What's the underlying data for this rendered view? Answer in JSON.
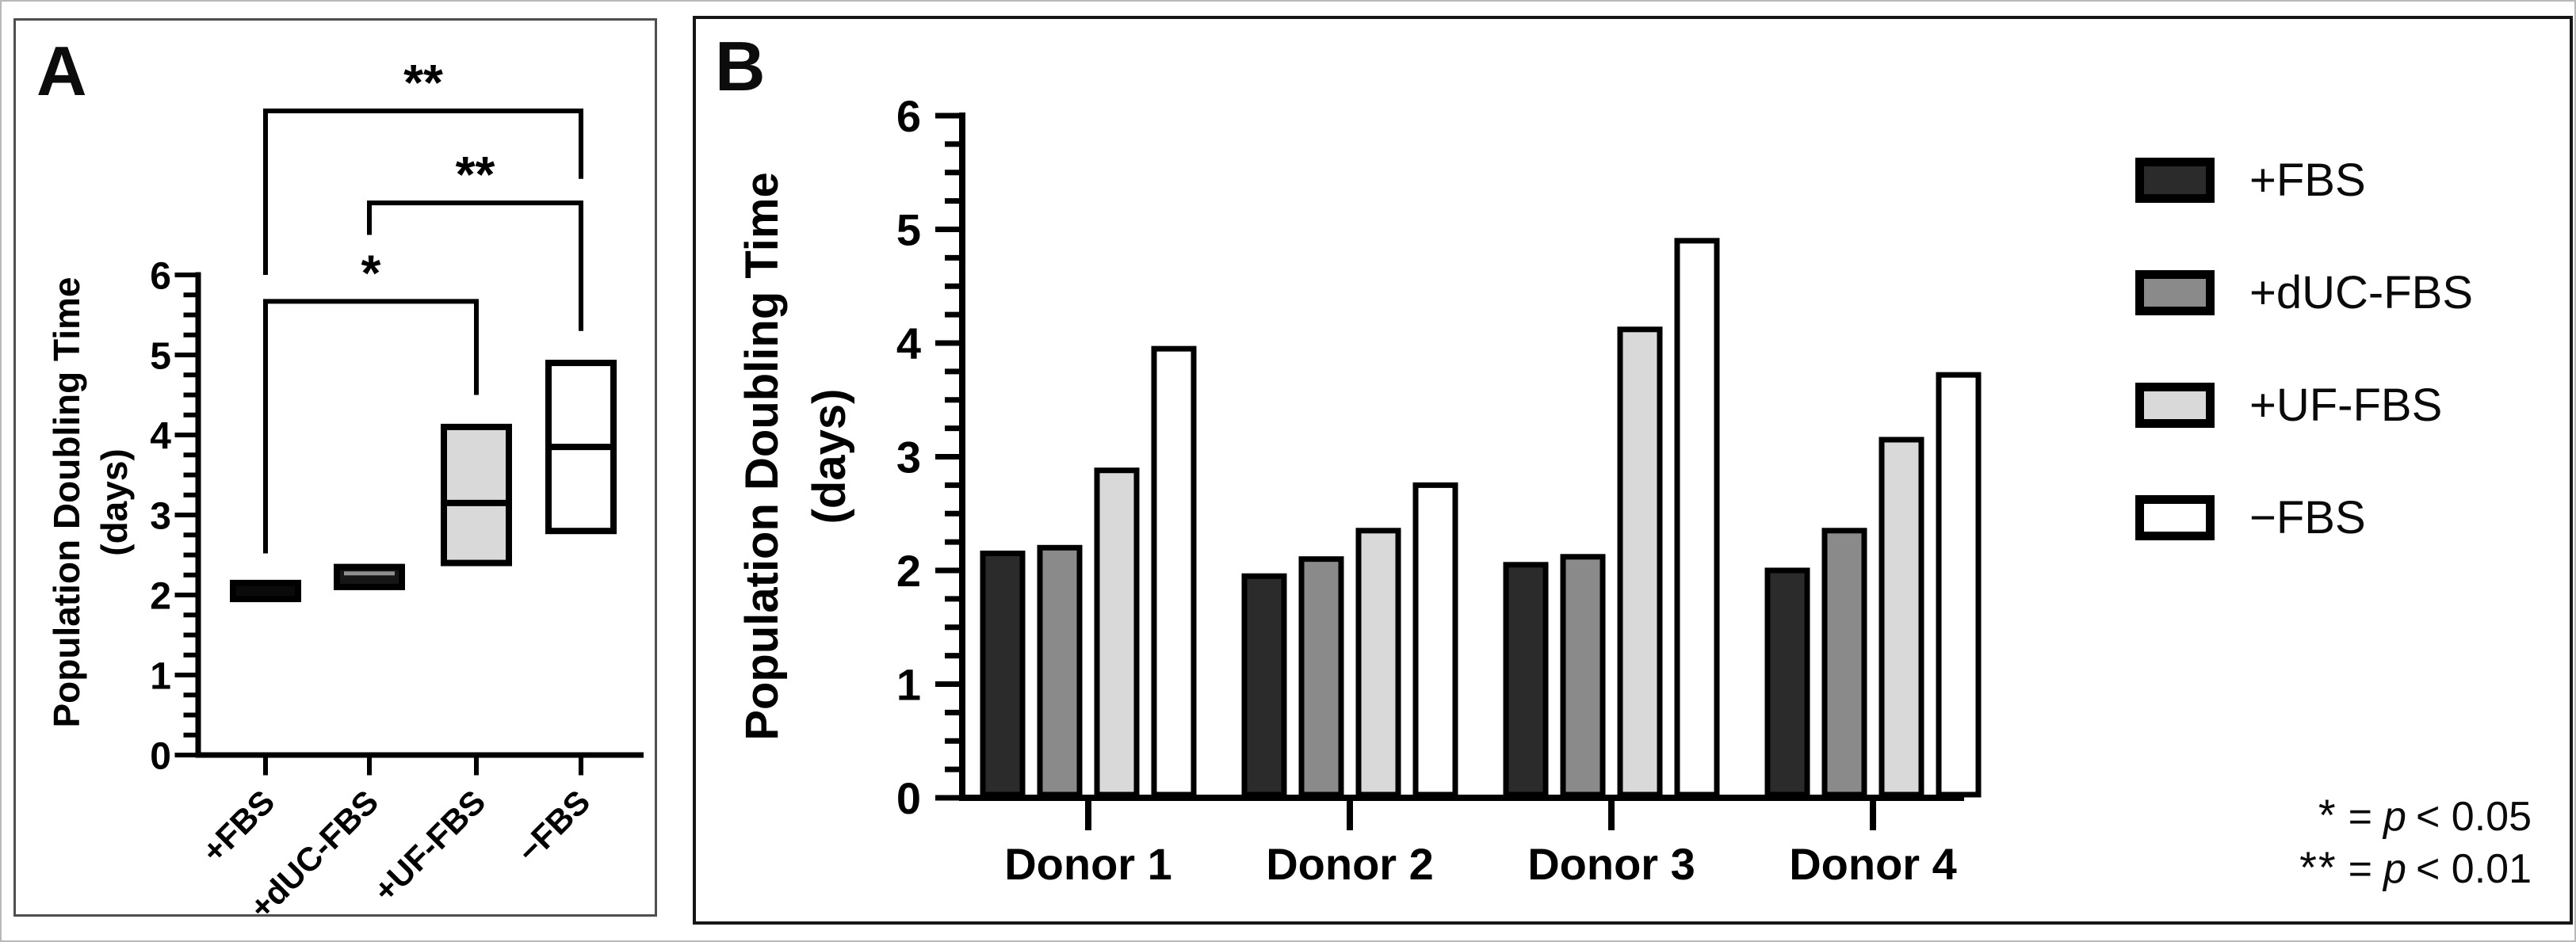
{
  "figure": {
    "panels": [
      {
        "label": "A"
      },
      {
        "label": "B"
      }
    ]
  },
  "chart_data": [
    {
      "id": "A",
      "type": "box",
      "title": "",
      "ylabel": "Population Doubling Time (days)",
      "ylabel_lines": [
        "Population Doubling Time",
        "(days)"
      ],
      "ylim": [
        0,
        6
      ],
      "ytick_major": 1,
      "ytick_minor": 0.25,
      "grid": false,
      "categories": [
        "+FBS",
        "+dUC-FBS",
        "+UF-FBS",
        "−FBS"
      ],
      "boxes": [
        {
          "category": "+FBS",
          "min": 1.95,
          "max": 2.15,
          "median": null,
          "fill": "#0a0a0a",
          "median_color": null
        },
        {
          "category": "+dUC-FBS",
          "min": 2.1,
          "max": 2.35,
          "median": 2.27,
          "fill": "#161616",
          "median_color": "#8f8f8f"
        },
        {
          "category": "+UF-FBS",
          "min": 2.4,
          "max": 4.1,
          "median": 3.15,
          "fill": "#d9d9d9",
          "median_color": "#000000"
        },
        {
          "category": "−FBS",
          "min": 2.8,
          "max": 4.9,
          "median": 3.85,
          "fill": "#ffffff",
          "median_color": "#000000"
        }
      ],
      "significance_brackets": [
        {
          "from": "+FBS",
          "to": "+UF-FBS",
          "label": "*",
          "bar_y": 5.67,
          "left_leg_to": 2.52,
          "right_leg_to": 4.5
        },
        {
          "from": "+dUC-FBS",
          "to": "−FBS",
          "label": "**",
          "bar_y": 6.9,
          "left_leg_to": 6.5,
          "right_leg_to": 5.3
        },
        {
          "from": "+FBS",
          "to": "−FBS",
          "label": "**",
          "bar_y": 8.05,
          "left_leg_to": 6.0,
          "right_leg_to": 7.2
        }
      ]
    },
    {
      "id": "B",
      "type": "bar",
      "title": "",
      "ylabel": "Population Doubling Time (days)",
      "ylabel_lines": [
        "Population Doubling Time",
        "(days)"
      ],
      "ylim": [
        0,
        6
      ],
      "ytick_major": 1,
      "ytick_minor": 0.25,
      "grid": false,
      "legend_position": "right",
      "categories": [
        "Donor 1",
        "Donor 2",
        "Donor 3",
        "Donor 4"
      ],
      "series": [
        {
          "name": "+FBS",
          "fill": "#2b2b2b",
          "values": [
            2.15,
            1.95,
            2.05,
            2.0
          ]
        },
        {
          "name": "+dUC-FBS",
          "fill": "#8a8a8a",
          "values": [
            2.2,
            2.1,
            2.12,
            2.35
          ]
        },
        {
          "name": "+UF-FBS",
          "fill": "#d9d9d9",
          "values": [
            2.88,
            2.35,
            4.12,
            3.15
          ]
        },
        {
          "name": "−FBS",
          "fill": "#ffffff",
          "values": [
            3.95,
            2.75,
            4.9,
            3.72
          ]
        }
      ],
      "legend": {
        "entries": [
          {
            "label": "+FBS",
            "fill": "#2b2b2b"
          },
          {
            "label": "+dUC-FBS",
            "fill": "#8a8a8a"
          },
          {
            "label": "+UF-FBS",
            "fill": "#d9d9d9"
          },
          {
            "label": "−FBS",
            "fill": "#ffffff"
          }
        ]
      },
      "notes": [
        {
          "symbol": "*",
          "equals": "=",
          "p": "p",
          "comparison": "< 0.05"
        },
        {
          "symbol": "**",
          "equals": "=",
          "p": "p",
          "comparison": "< 0.01"
        }
      ]
    }
  ]
}
